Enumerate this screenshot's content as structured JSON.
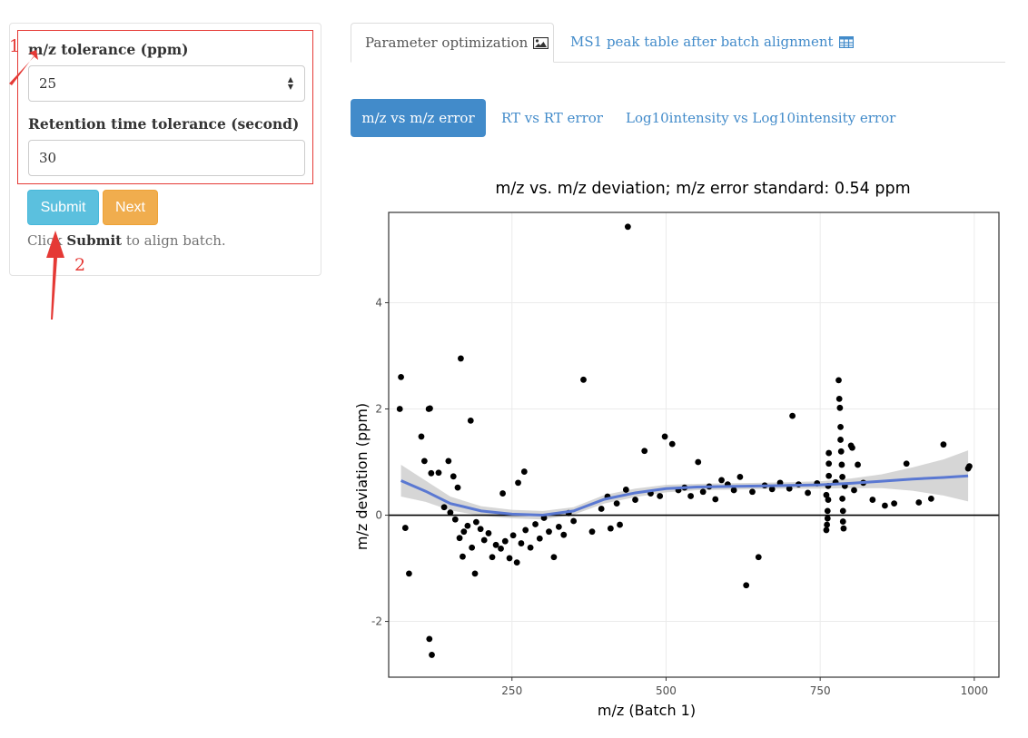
{
  "form": {
    "mz_tol_label": "m/z tolerance (ppm)",
    "mz_tol_value": "25",
    "rt_tol_label": "Retention time tolerance (second)",
    "rt_tol_value": "30",
    "submit_label": "Submit",
    "next_label": "Next",
    "help_prefix": "Click ",
    "help_bold": "Submit",
    "help_suffix": " to align batch."
  },
  "annotations": {
    "step1": "1",
    "step2": "2",
    "color": "#e53935"
  },
  "tabs": [
    {
      "label": "Parameter optimization",
      "icon": "image-icon",
      "active": true
    },
    {
      "label": "MS1 peak table after batch alignment",
      "icon": "table-icon",
      "active": false
    }
  ],
  "pills": [
    {
      "label": "m/z vs m/z error",
      "active": true
    },
    {
      "label": "RT vs RT error",
      "active": false
    },
    {
      "label": "Log10intensity vs Log10intensity error",
      "active": false
    }
  ],
  "colors": {
    "accent": "#428bca",
    "submit": "#5bc0de",
    "next": "#f0ad4e",
    "smooth": "#5a78d2"
  },
  "chart_data": {
    "type": "scatter",
    "title": "m/z vs. m/z deviation;  m/z error standard: 0.54 ppm",
    "xlabel": "m/z (Batch 1)",
    "ylabel": "m/z deviation (ppm)",
    "xlim": [
      50,
      1040
    ],
    "ylim": [
      -3.05,
      5.7
    ],
    "xticks": [
      250,
      500,
      750,
      1000
    ],
    "yticks": [
      -2,
      0,
      2,
      4
    ],
    "grid": true,
    "reference_line_y": 0,
    "smooth": {
      "x": [
        70,
        110,
        150,
        200,
        250,
        300,
        350,
        400,
        450,
        500,
        550,
        600,
        650,
        700,
        750,
        800,
        850,
        900,
        950,
        990
      ],
      "y": [
        0.65,
        0.45,
        0.22,
        0.08,
        0.02,
        0.0,
        0.08,
        0.3,
        0.42,
        0.5,
        0.53,
        0.54,
        0.55,
        0.56,
        0.57,
        0.6,
        0.64,
        0.68,
        0.71,
        0.74
      ],
      "ci_upper": [
        0.95,
        0.65,
        0.35,
        0.17,
        0.1,
        0.08,
        0.15,
        0.38,
        0.5,
        0.57,
        0.59,
        0.6,
        0.61,
        0.62,
        0.64,
        0.69,
        0.77,
        0.9,
        1.05,
        1.22
      ],
      "ci_lower": [
        0.35,
        0.25,
        0.09,
        -0.01,
        -0.06,
        -0.08,
        0.01,
        0.22,
        0.34,
        0.43,
        0.47,
        0.48,
        0.49,
        0.5,
        0.5,
        0.51,
        0.51,
        0.46,
        0.37,
        0.26
      ]
    },
    "points": [
      [
        438,
        5.43
      ],
      [
        70,
        2.6
      ],
      [
        68,
        2.0
      ],
      [
        115,
        2.0
      ],
      [
        117,
        2.01
      ],
      [
        167,
        2.95
      ],
      [
        183,
        1.78
      ],
      [
        366,
        2.55
      ],
      [
        705,
        1.87
      ],
      [
        103,
        1.48
      ],
      [
        119,
        0.79
      ],
      [
        131,
        0.8
      ],
      [
        147,
        1.02
      ],
      [
        155,
        0.73
      ],
      [
        162,
        0.52
      ],
      [
        108,
        1.02
      ],
      [
        77,
        -0.24
      ],
      [
        83,
        -1.1
      ],
      [
        116,
        -2.33
      ],
      [
        120,
        -2.63
      ],
      [
        140,
        0.15
      ],
      [
        150,
        0.05
      ],
      [
        158,
        -0.08
      ],
      [
        165,
        -0.43
      ],
      [
        172,
        -0.31
      ],
      [
        178,
        -0.2
      ],
      [
        185,
        -0.61
      ],
      [
        192,
        -0.13
      ],
      [
        199,
        -0.26
      ],
      [
        205,
        -0.47
      ],
      [
        212,
        -0.34
      ],
      [
        218,
        -0.79
      ],
      [
        224,
        -0.56
      ],
      [
        232,
        -0.63
      ],
      [
        239,
        -0.49
      ],
      [
        246,
        -0.81
      ],
      [
        252,
        -0.38
      ],
      [
        258,
        -0.89
      ],
      [
        265,
        -0.53
      ],
      [
        272,
        -0.28
      ],
      [
        280,
        -0.61
      ],
      [
        288,
        -0.17
      ],
      [
        295,
        -0.44
      ],
      [
        302,
        -0.05
      ],
      [
        310,
        -0.31
      ],
      [
        318,
        -0.79
      ],
      [
        326,
        -0.22
      ],
      [
        334,
        -0.37
      ],
      [
        342,
        0.04
      ],
      [
        350,
        -0.11
      ],
      [
        190,
        -1.1
      ],
      [
        170,
        -0.78
      ],
      [
        235,
        0.41
      ],
      [
        270,
        0.82
      ],
      [
        260,
        0.61
      ],
      [
        380,
        -0.31
      ],
      [
        395,
        0.12
      ],
      [
        410,
        -0.25
      ],
      [
        425,
        -0.18
      ],
      [
        405,
        0.35
      ],
      [
        420,
        0.22
      ],
      [
        435,
        0.48
      ],
      [
        450,
        0.29
      ],
      [
        465,
        1.21
      ],
      [
        475,
        0.41
      ],
      [
        490,
        0.36
      ],
      [
        498,
        1.48
      ],
      [
        510,
        1.34
      ],
      [
        520,
        0.47
      ],
      [
        530,
        0.52
      ],
      [
        540,
        0.36
      ],
      [
        552,
        1.0
      ],
      [
        560,
        0.44
      ],
      [
        570,
        0.54
      ],
      [
        580,
        0.3
      ],
      [
        590,
        0.66
      ],
      [
        600,
        0.58
      ],
      [
        610,
        0.47
      ],
      [
        620,
        0.72
      ],
      [
        630,
        -1.32
      ],
      [
        650,
        -0.79
      ],
      [
        640,
        0.44
      ],
      [
        660,
        0.56
      ],
      [
        672,
        0.49
      ],
      [
        685,
        0.61
      ],
      [
        700,
        0.5
      ],
      [
        715,
        0.58
      ],
      [
        730,
        0.42
      ],
      [
        745,
        0.6
      ],
      [
        760,
        0.38
      ],
      [
        775,
        0.62
      ],
      [
        790,
        0.55
      ],
      [
        805,
        0.47
      ],
      [
        820,
        0.61
      ],
      [
        835,
        0.29
      ],
      [
        855,
        0.18
      ],
      [
        870,
        0.22
      ],
      [
        890,
        0.97
      ],
      [
        910,
        0.24
      ],
      [
        930,
        0.31
      ],
      [
        950,
        1.33
      ],
      [
        990,
        0.88
      ],
      [
        992,
        0.92
      ],
      [
        800,
        1.31
      ],
      [
        802,
        1.27
      ],
      [
        811,
        0.95
      ],
      [
        760,
        -0.28
      ],
      [
        761,
        -0.18
      ],
      [
        762,
        -0.06
      ],
      [
        762,
        0.08
      ],
      [
        763,
        0.29
      ],
      [
        763,
        0.55
      ],
      [
        764,
        0.74
      ],
      [
        764,
        0.97
      ],
      [
        764,
        1.17
      ],
      [
        780,
        2.54
      ],
      [
        781,
        2.19
      ],
      [
        782,
        2.02
      ],
      [
        783,
        1.66
      ],
      [
        783,
        1.42
      ],
      [
        784,
        1.2
      ],
      [
        785,
        0.95
      ],
      [
        786,
        0.72
      ],
      [
        786,
        0.31
      ],
      [
        787,
        0.08
      ],
      [
        787,
        -0.12
      ],
      [
        788,
        -0.25
      ]
    ]
  }
}
